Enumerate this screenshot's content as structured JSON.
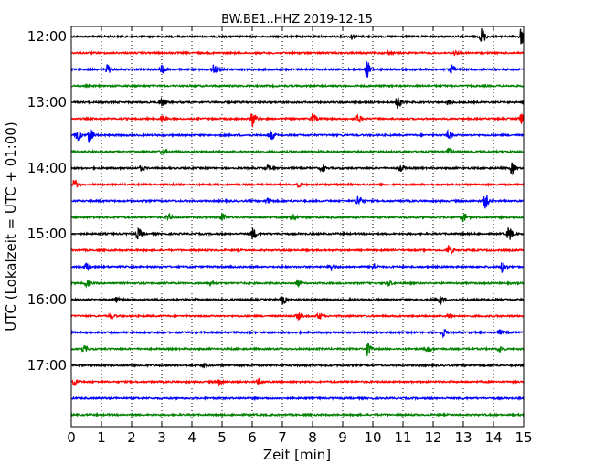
{
  "chart_data": {
    "type": "line",
    "title": "BW.BE1..HHZ 2019-12-15",
    "xlabel": "Zeit  [min]",
    "ylabel": "UTC (Lokalzeit = UTC + 01:00)",
    "xlim": [
      0,
      15
    ],
    "x_ticks": [
      "0",
      "1",
      "2",
      "3",
      "4",
      "5",
      "6",
      "7",
      "8",
      "9",
      "10",
      "11",
      "12",
      "13",
      "14",
      "15"
    ],
    "y_ticks": [
      {
        "label": "12:00",
        "row": 0
      },
      {
        "label": "13:00",
        "row": 4
      },
      {
        "label": "14:00",
        "row": 8
      },
      {
        "label": "15:00",
        "row": 12
      },
      {
        "label": "16:00",
        "row": 16
      },
      {
        "label": "17:00",
        "row": 20
      }
    ],
    "row_interval_minutes": 15,
    "grid": "vertical-dotted",
    "color_cycle": [
      "#000000",
      "#ff0000",
      "#0000ff",
      "#008000"
    ],
    "traces": [
      {
        "start": "12:00",
        "events": [
          {
            "t": 13.6,
            "amp": 1.0
          },
          {
            "t": 14.9,
            "amp": 1.0
          },
          {
            "t": 9.3,
            "amp": 0.3
          }
        ]
      },
      {
        "start": "12:15",
        "events": [
          {
            "t": 10.5,
            "amp": 0.2
          },
          {
            "t": 12.7,
            "amp": 0.2
          }
        ]
      },
      {
        "start": "12:30",
        "events": [
          {
            "t": 1.2,
            "amp": 0.5
          },
          {
            "t": 3.0,
            "amp": 0.5
          },
          {
            "t": 4.7,
            "amp": 0.6
          },
          {
            "t": 9.8,
            "amp": 1.0
          },
          {
            "t": 12.6,
            "amp": 0.5
          }
        ]
      },
      {
        "start": "12:45",
        "events": []
      },
      {
        "start": "13:00",
        "events": [
          {
            "t": 3.0,
            "amp": 0.5
          },
          {
            "t": 10.8,
            "amp": 0.8
          },
          {
            "t": 12.5,
            "amp": 0.3
          }
        ]
      },
      {
        "start": "13:15",
        "events": [
          {
            "t": 3.0,
            "amp": 0.4
          },
          {
            "t": 6.0,
            "amp": 1.0
          },
          {
            "t": 8.0,
            "amp": 0.6
          },
          {
            "t": 9.5,
            "amp": 0.5
          },
          {
            "t": 14.9,
            "amp": 0.6
          }
        ]
      },
      {
        "start": "13:30",
        "events": [
          {
            "t": 0.2,
            "amp": 0.6
          },
          {
            "t": 0.6,
            "amp": 1.0
          },
          {
            "t": 6.6,
            "amp": 0.6
          },
          {
            "t": 12.5,
            "amp": 0.5
          }
        ]
      },
      {
        "start": "13:45",
        "events": [
          {
            "t": 3.0,
            "amp": 0.3
          },
          {
            "t": 12.5,
            "amp": 0.4
          }
        ]
      },
      {
        "start": "14:00",
        "events": [
          {
            "t": 2.3,
            "amp": 0.3
          },
          {
            "t": 6.5,
            "amp": 0.3
          },
          {
            "t": 8.3,
            "amp": 0.4
          },
          {
            "t": 10.9,
            "amp": 0.5
          },
          {
            "t": 14.6,
            "amp": 0.7
          }
        ]
      },
      {
        "start": "14:15",
        "events": [
          {
            "t": 0.1,
            "amp": 0.6
          },
          {
            "t": 7.5,
            "amp": 0.3
          }
        ]
      },
      {
        "start": "14:30",
        "events": [
          {
            "t": 6.5,
            "amp": 0.3
          },
          {
            "t": 9.5,
            "amp": 0.7
          },
          {
            "t": 13.7,
            "amp": 0.9
          }
        ]
      },
      {
        "start": "14:45",
        "events": [
          {
            "t": 3.2,
            "amp": 0.4
          },
          {
            "t": 5.0,
            "amp": 0.5
          },
          {
            "t": 7.3,
            "amp": 0.6
          },
          {
            "t": 13.0,
            "amp": 0.5
          }
        ]
      },
      {
        "start": "15:00",
        "events": [
          {
            "t": 2.2,
            "amp": 0.6
          },
          {
            "t": 6.0,
            "amp": 0.7
          },
          {
            "t": 14.5,
            "amp": 0.9
          }
        ]
      },
      {
        "start": "15:15",
        "events": [
          {
            "t": 12.5,
            "amp": 0.6
          }
        ]
      },
      {
        "start": "15:30",
        "events": [
          {
            "t": 0.5,
            "amp": 0.6
          },
          {
            "t": 8.6,
            "amp": 0.5
          },
          {
            "t": 10.0,
            "amp": 0.4
          },
          {
            "t": 14.3,
            "amp": 0.8
          }
        ]
      },
      {
        "start": "15:45",
        "events": [
          {
            "t": 0.5,
            "amp": 0.4
          },
          {
            "t": 4.6,
            "amp": 0.3
          },
          {
            "t": 7.5,
            "amp": 0.4
          },
          {
            "t": 10.5,
            "amp": 0.3
          }
        ]
      },
      {
        "start": "16:00",
        "events": [
          {
            "t": 1.5,
            "amp": 0.3
          },
          {
            "t": 7.0,
            "amp": 0.5
          },
          {
            "t": 12.2,
            "amp": 0.5
          }
        ]
      },
      {
        "start": "16:15",
        "events": [
          {
            "t": 1.3,
            "amp": 0.3
          },
          {
            "t": 7.5,
            "amp": 0.4
          },
          {
            "t": 8.2,
            "amp": 0.4
          },
          {
            "t": 12.5,
            "amp": 0.3
          }
        ]
      },
      {
        "start": "16:30",
        "events": [
          {
            "t": 12.3,
            "amp": 0.5
          },
          {
            "t": 14.2,
            "amp": 0.3
          }
        ]
      },
      {
        "start": "16:45",
        "events": [
          {
            "t": 0.4,
            "amp": 0.4
          },
          {
            "t": 9.8,
            "amp": 0.8
          },
          {
            "t": 11.8,
            "amp": 0.4
          },
          {
            "t": 14.2,
            "amp": 0.4
          }
        ]
      },
      {
        "start": "17:00",
        "events": [
          {
            "t": 4.4,
            "amp": 0.2
          }
        ]
      },
      {
        "start": "17:15",
        "events": [
          {
            "t": 0.1,
            "amp": 0.5
          },
          {
            "t": 4.9,
            "amp": 0.3
          },
          {
            "t": 6.2,
            "amp": 0.3
          }
        ]
      },
      {
        "start": "17:30",
        "events": []
      },
      {
        "start": "17:45",
        "events": []
      }
    ]
  }
}
